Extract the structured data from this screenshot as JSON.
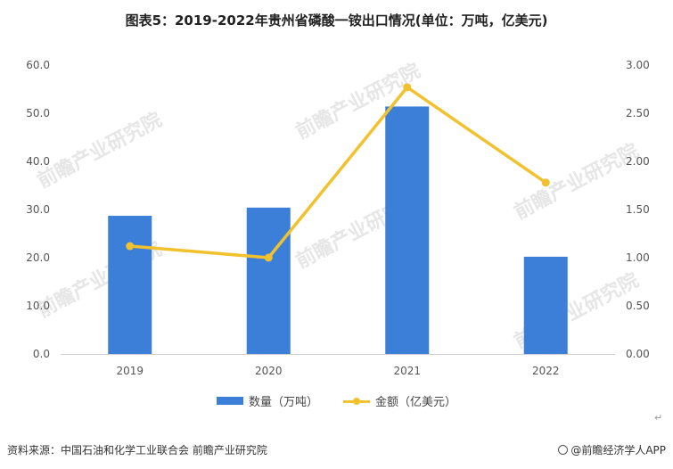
{
  "title": "图表5：2019-2022年贵州省磷酸一铵出口情况(单位：万吨，亿美元)",
  "chart_data": {
    "type": "bar",
    "categories": [
      "2019",
      "2020",
      "2021",
      "2022"
    ],
    "series": [
      {
        "name": "数量（万吨）",
        "type": "bar",
        "axis": "left",
        "values": [
          28.7,
          30.4,
          51.4,
          20.2
        ],
        "color": "#3b7fd9"
      },
      {
        "name": "金额（亿美元）",
        "type": "line",
        "axis": "right",
        "values": [
          1.12,
          1.0,
          2.77,
          1.78
        ],
        "color": "#f2c12e"
      }
    ],
    "y_left": {
      "min": 0,
      "max": 60,
      "ticks": [
        "0.0",
        "10.0",
        "20.0",
        "30.0",
        "40.0",
        "50.0",
        "60.0"
      ]
    },
    "y_right": {
      "min": 0,
      "max": 3,
      "ticks": [
        "0.00",
        "0.50",
        "1.00",
        "1.50",
        "2.00",
        "2.50",
        "3.00"
      ]
    },
    "legend_position": "bottom",
    "grid": false
  },
  "watermark": "前瞻产业研究院",
  "footer": {
    "source": "资料来源：中国石油和化学工业联合会 前瞻产业研究院",
    "brand": "@前瞻经济学人APP"
  },
  "return_mark": "↵"
}
